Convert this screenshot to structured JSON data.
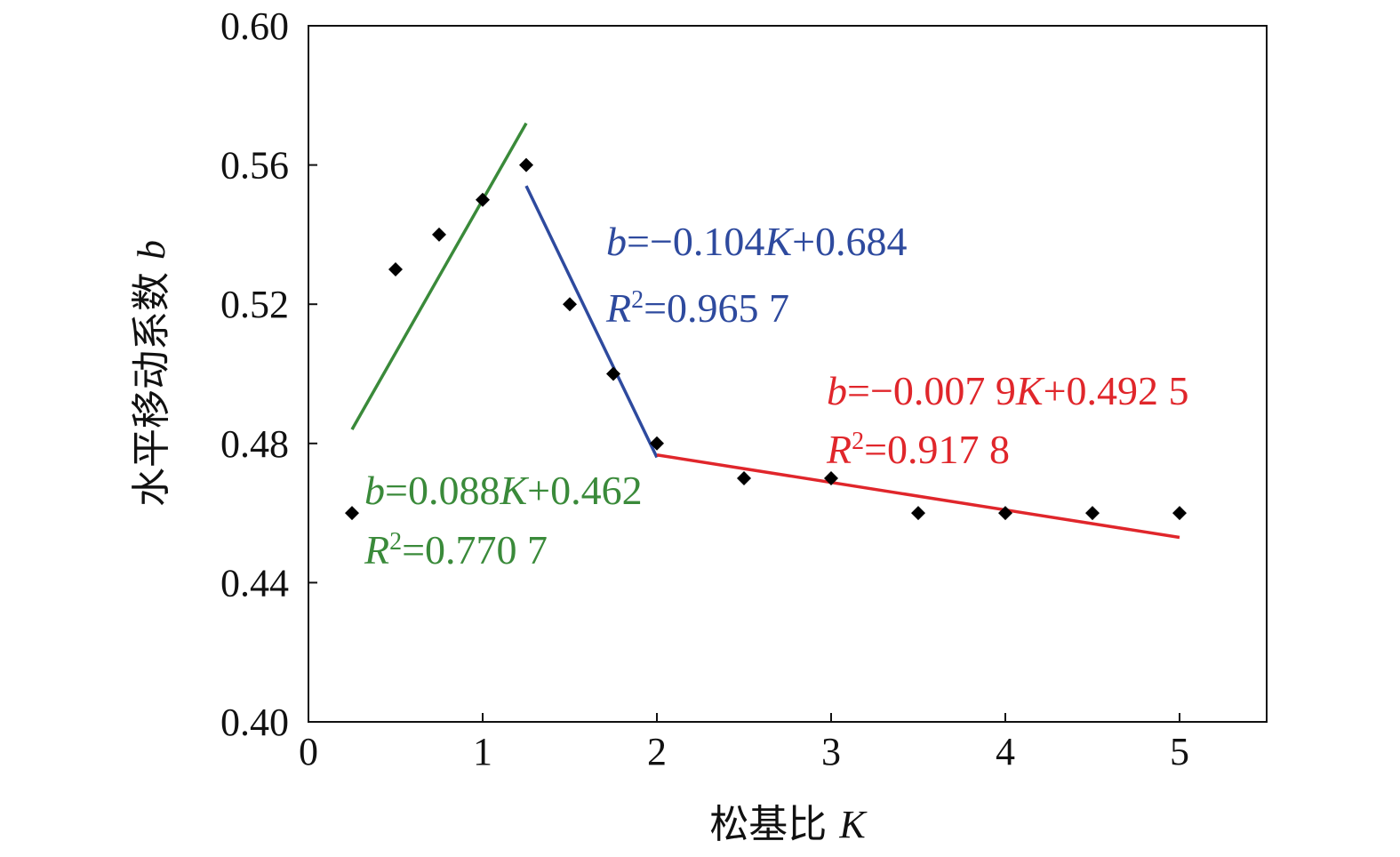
{
  "chart_data": {
    "type": "scatter",
    "xlabel": "松基比 K",
    "xlabel_text": "松基比 ",
    "xlabel_var": "K",
    "ylabel": "水平移动系数 b",
    "ylabel_text": "水平移动系数 ",
    "ylabel_var": "b",
    "xlim": [
      0,
      5.5
    ],
    "ylim": [
      0.4,
      0.6
    ],
    "x_ticks": [
      0,
      1,
      2,
      3,
      4,
      5
    ],
    "x_tick_labels": [
      "0",
      "1",
      "2",
      "3",
      "4",
      "5"
    ],
    "y_ticks": [
      0.4,
      0.44,
      0.48,
      0.52,
      0.56,
      0.6
    ],
    "y_tick_labels": [
      "0.40",
      "0.44",
      "0.48",
      "0.52",
      "0.56",
      "0.60"
    ],
    "grid": false,
    "points": {
      "x": [
        0.25,
        0.5,
        0.75,
        1.0,
        1.25,
        1.5,
        1.75,
        2.0,
        2.5,
        3.0,
        3.5,
        4.0,
        4.5,
        5.0
      ],
      "y": [
        0.46,
        0.53,
        0.54,
        0.55,
        0.56,
        0.52,
        0.5,
        0.48,
        0.47,
        0.47,
        0.46,
        0.46,
        0.46,
        0.46
      ],
      "color": "#000000"
    },
    "fits": [
      {
        "color": "#3a8a3a",
        "x_range": [
          0.25,
          1.25
        ],
        "slope": 0.088,
        "intercept": 0.462,
        "eq_var": "b",
        "eq_mid": "=0.088",
        "eq_var2": "K",
        "eq_tail": "+0.462",
        "r2_var": "R",
        "r2_sup": "2",
        "r2_value": "=0.770 7"
      },
      {
        "color": "#2e4a9e",
        "x_range": [
          1.25,
          2.0
        ],
        "slope": -0.104,
        "intercept": 0.684,
        "eq_var": "b",
        "eq_mid": "=−0.104",
        "eq_var2": "K",
        "eq_tail": "+0.684",
        "r2_var": "R",
        "r2_sup": "2",
        "r2_value": "=0.965 7"
      },
      {
        "color": "#e0262b",
        "x_range": [
          2.0,
          5.0
        ],
        "slope": -0.0079,
        "intercept": 0.4925,
        "eq_var": "b",
        "eq_mid": "=−0.007 9",
        "eq_var2": "K",
        "eq_tail": "+0.492 5",
        "r2_var": "R",
        "r2_sup": "2",
        "r2_value": "=0.917 8"
      }
    ]
  }
}
